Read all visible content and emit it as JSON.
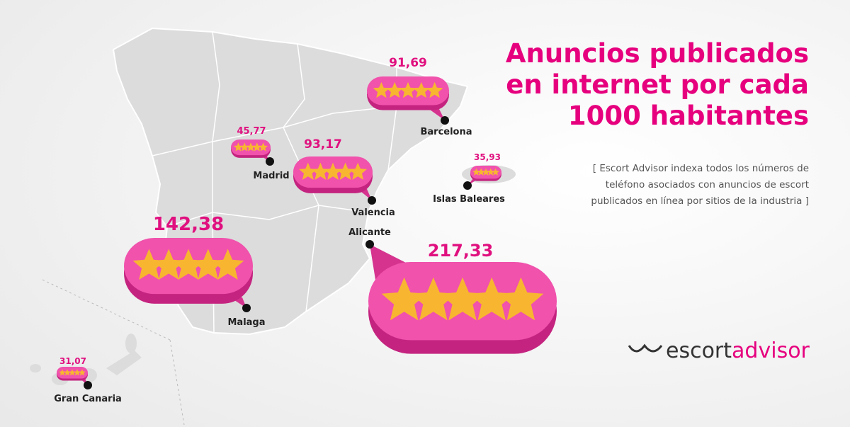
{
  "title": [
    "Anuncios publicados",
    "en internet por cada",
    "1000 habitantes"
  ],
  "note": [
    "[ Escort Advisor indexa todos los números de",
    "teléfono asociados con anuncios de escort",
    "publicados en línea por sitios de la industria ]"
  ],
  "brand": [
    "escort",
    "advisor"
  ],
  "cities": [
    {
      "name": "Barcelona",
      "value": "91,69"
    },
    {
      "name": "Madrid",
      "value": "45,77"
    },
    {
      "name": "Valencia",
      "value": "93,17"
    },
    {
      "name": "Islas Baleares",
      "value": "35,93"
    },
    {
      "name": "Alicante",
      "value": "217,33"
    },
    {
      "name": "Malaga",
      "value": "142,38"
    },
    {
      "name": "Gran Canaria",
      "value": "31,07"
    }
  ]
}
